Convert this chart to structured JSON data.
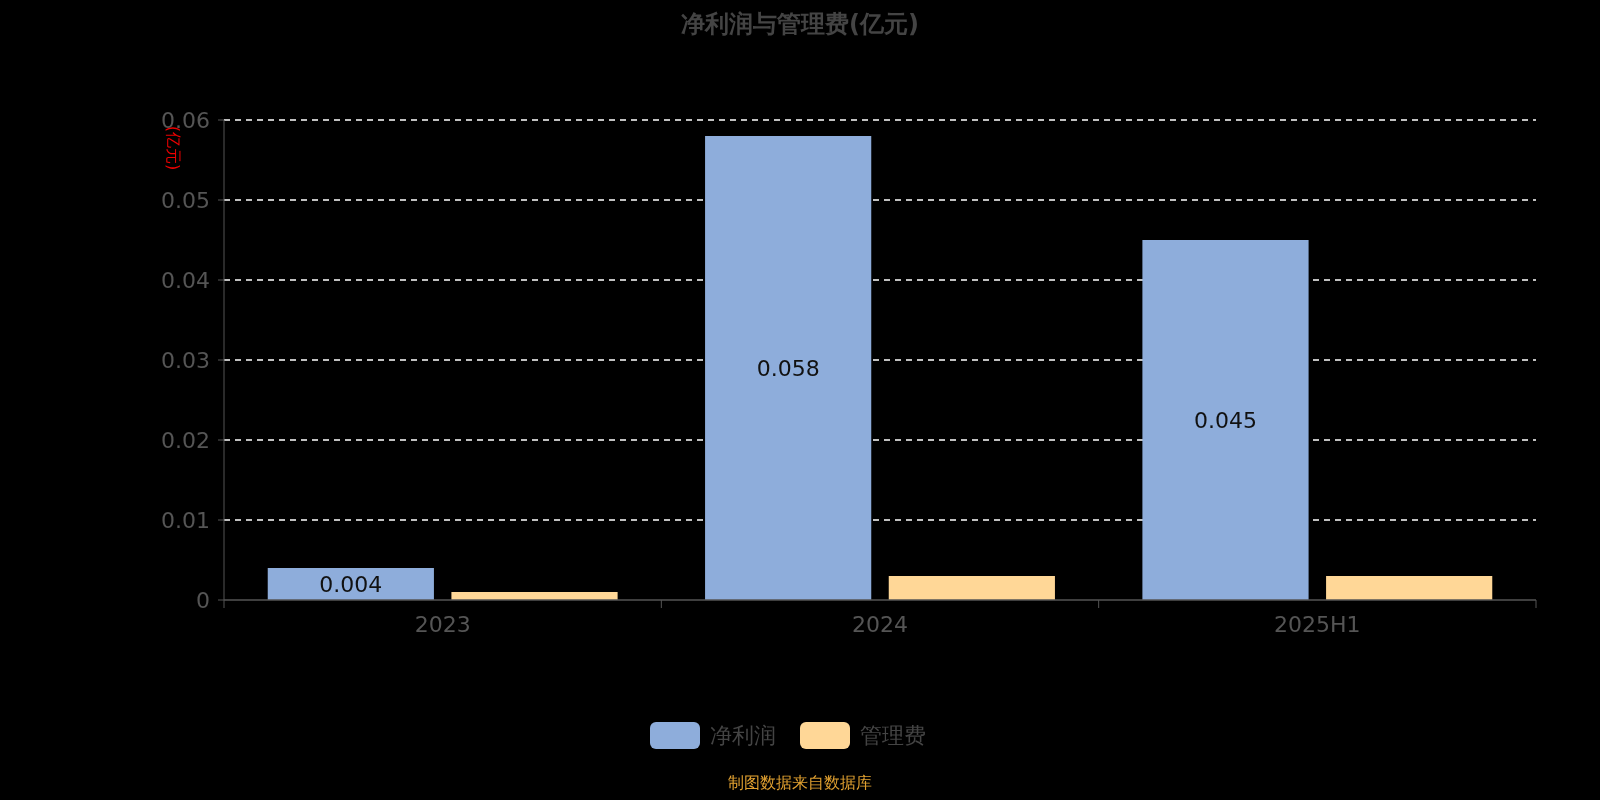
{
  "chart_data": {
    "type": "bar",
    "title": "净利润与管理费(亿元)",
    "ylabel": "(亿元)",
    "categories": [
      "2023",
      "2024",
      "2025H1"
    ],
    "series": [
      {
        "name": "净利润",
        "color": "#8eaddb",
        "values": [
          0.004,
          0.058,
          0.045
        ],
        "value_labels": [
          "0.004",
          "0.058",
          "0.045"
        ]
      },
      {
        "name": "管理费",
        "color": "#ffd797",
        "values": [
          0.001,
          0.003,
          0.003
        ]
      }
    ],
    "ylim": [
      0,
      0.06
    ],
    "yticks": [
      0,
      0.01,
      0.02,
      0.03,
      0.04,
      0.05,
      0.06
    ],
    "grid": "y",
    "legend": "bottom",
    "annotations": [
      "制图数据来自数据库"
    ]
  }
}
